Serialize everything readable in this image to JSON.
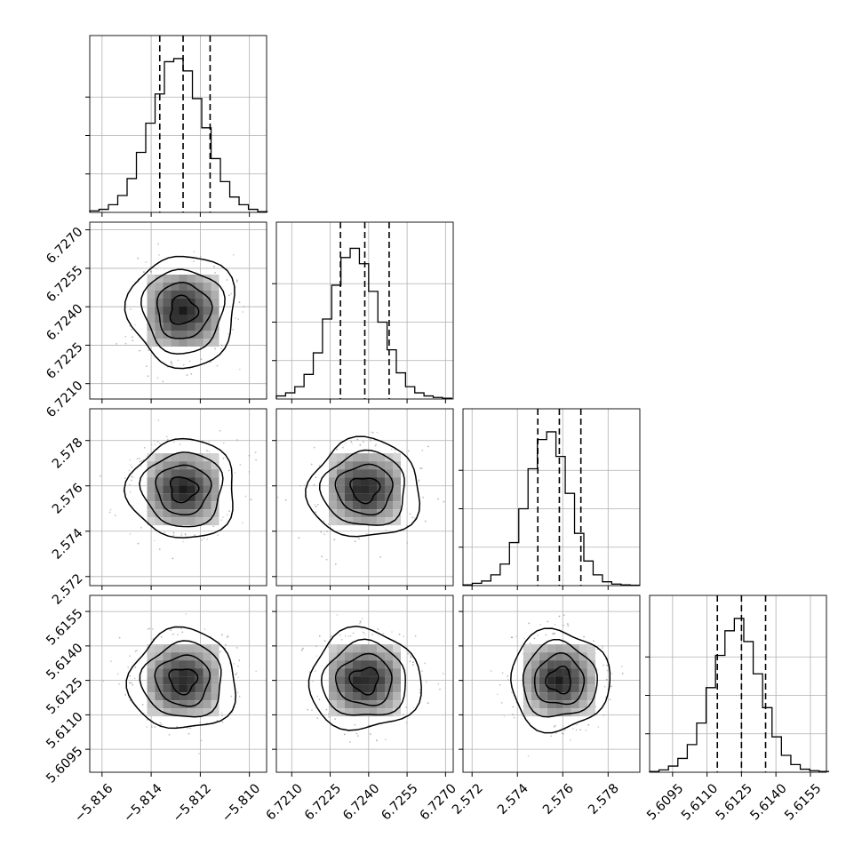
{
  "chart_data": {
    "type": "corner",
    "grid": true,
    "parameters": [
      {
        "ylim_hist": [
          0,
          1.15
        ],
        "xlim": [
          -5.8165,
          -5.8093
        ],
        "mean": -5.8127,
        "sd": 0.00095,
        "quantiles": [
          -5.81365,
          -5.8127,
          -5.8116
        ],
        "ticks": [
          -5.816,
          -5.814,
          -5.812,
          -5.81
        ],
        "tick_labels": [
          "−5.816",
          "−5.814",
          "−5.812",
          "−5.810"
        ],
        "hist_bins": {
          "start": -5.8165,
          "width": 0.00038
        },
        "hist_counts": [
          0.01,
          0.02,
          0.05,
          0.11,
          0.22,
          0.39,
          0.58,
          0.77,
          0.98,
          1.0,
          0.92,
          0.74,
          0.55,
          0.35,
          0.2,
          0.1,
          0.05,
          0.02,
          0.005
        ]
      },
      {
        "ylim_hist": [
          0,
          1.15
        ],
        "xlim": [
          6.7204,
          6.7273
        ],
        "mean": 6.72385,
        "sd": 0.00095,
        "quantiles": [
          6.7229,
          6.72385,
          6.7248
        ],
        "ticks": [
          6.721,
          6.7225,
          6.724,
          6.7255,
          6.727
        ],
        "tick_labels": [
          "6.7210",
          "6.7225",
          "6.7240",
          "6.7255",
          "6.7270"
        ],
        "hist_bins": {
          "start": 6.7204,
          "width": 0.00036
        },
        "hist_counts": [
          0.02,
          0.04,
          0.08,
          0.16,
          0.3,
          0.52,
          0.74,
          0.92,
          0.98,
          0.88,
          0.7,
          0.5,
          0.32,
          0.17,
          0.08,
          0.04,
          0.02,
          0.01,
          0.005
        ]
      },
      {
        "ylim_hist": [
          0,
          1.15
        ],
        "xlim": [
          2.5716,
          2.5794
        ],
        "mean": 2.57585,
        "sd": 0.00095,
        "quantiles": [
          2.5749,
          2.57585,
          2.5768
        ],
        "ticks": [
          2.572,
          2.574,
          2.576,
          2.578
        ],
        "tick_labels": [
          "2.572",
          "2.574",
          "2.576",
          "2.578"
        ],
        "hist_bins": {
          "start": 2.5716,
          "width": 0.00041
        },
        "hist_counts": [
          0.005,
          0.015,
          0.03,
          0.07,
          0.14,
          0.28,
          0.5,
          0.76,
          0.95,
          1.0,
          0.84,
          0.6,
          0.34,
          0.16,
          0.07,
          0.025,
          0.01,
          0.005,
          0.003
        ]
      },
      {
        "ylim_hist": [
          0,
          1.15
        ],
        "xlim": [
          5.6085,
          5.6162
        ],
        "mean": 5.6125,
        "sd": 0.00095,
        "quantiles": [
          5.61145,
          5.6125,
          5.61355
        ],
        "ticks": [
          5.6095,
          5.611,
          5.6125,
          5.614,
          5.6155
        ],
        "tick_labels": [
          "5.6095",
          "5.6110",
          "5.6125",
          "5.6140",
          "5.6155"
        ],
        "hist_bins": {
          "start": 5.6085,
          "width": 0.00041
        },
        "hist_counts": [
          0.005,
          0.015,
          0.04,
          0.09,
          0.18,
          0.32,
          0.55,
          0.76,
          0.92,
          1.0,
          0.85,
          0.64,
          0.42,
          0.23,
          0.11,
          0.05,
          0.02,
          0.01,
          0.005
        ]
      }
    ],
    "contour_levels_sigma": [
      0.5,
      1.0,
      1.5,
      2.0
    ]
  }
}
